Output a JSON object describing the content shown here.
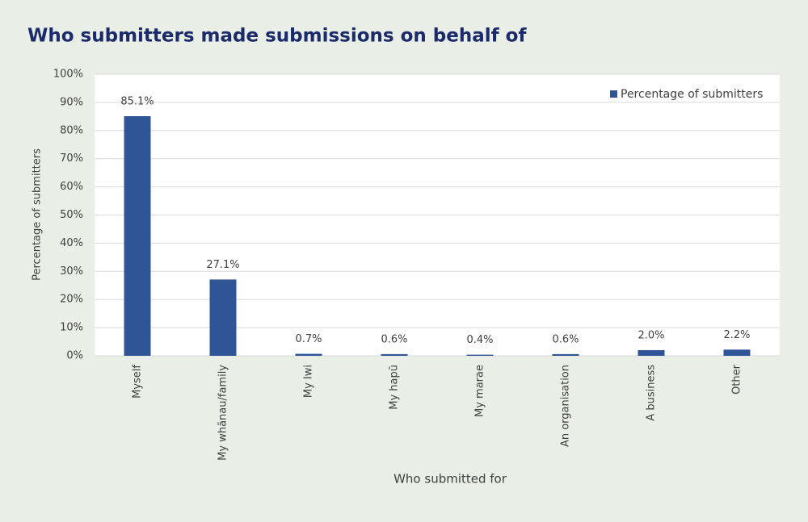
{
  "chart_data": {
    "type": "bar",
    "title": "Who submitters made submissions on behalf of",
    "x_label": "Who submitted for",
    "y_label": "Percentage of submitters",
    "categories": [
      "Myself",
      "My whānau/family",
      "My Iwi",
      "My hapū",
      "My marae",
      "An organisation",
      "A business",
      "Other"
    ],
    "series": [
      {
        "name": "Percentage of submitters",
        "color": "#2f5597",
        "values": [
          85.1,
          27.1,
          0.7,
          0.6,
          0.4,
          0.6,
          2.0,
          2.2
        ],
        "value_labels": [
          "85.1%",
          "27.1%",
          "0.7%",
          "0.6%",
          "0.4%",
          "0.6%",
          "2.0%",
          "2.2%"
        ]
      }
    ],
    "ylim": [
      0,
      100
    ],
    "yticks": [
      {
        "value": 0,
        "label": "0%"
      },
      {
        "value": 10,
        "label": "10%"
      },
      {
        "value": 20,
        "label": "20%"
      },
      {
        "value": 30,
        "label": "30%"
      },
      {
        "value": 40,
        "label": "40%"
      },
      {
        "value": 50,
        "label": "50%"
      },
      {
        "value": 60,
        "label": "60%"
      },
      {
        "value": 70,
        "label": "70%"
      },
      {
        "value": 80,
        "label": "80%"
      },
      {
        "value": 90,
        "label": "90%"
      },
      {
        "value": 100,
        "label": "100%"
      }
    ],
    "grid": true,
    "legend": "top-right"
  }
}
